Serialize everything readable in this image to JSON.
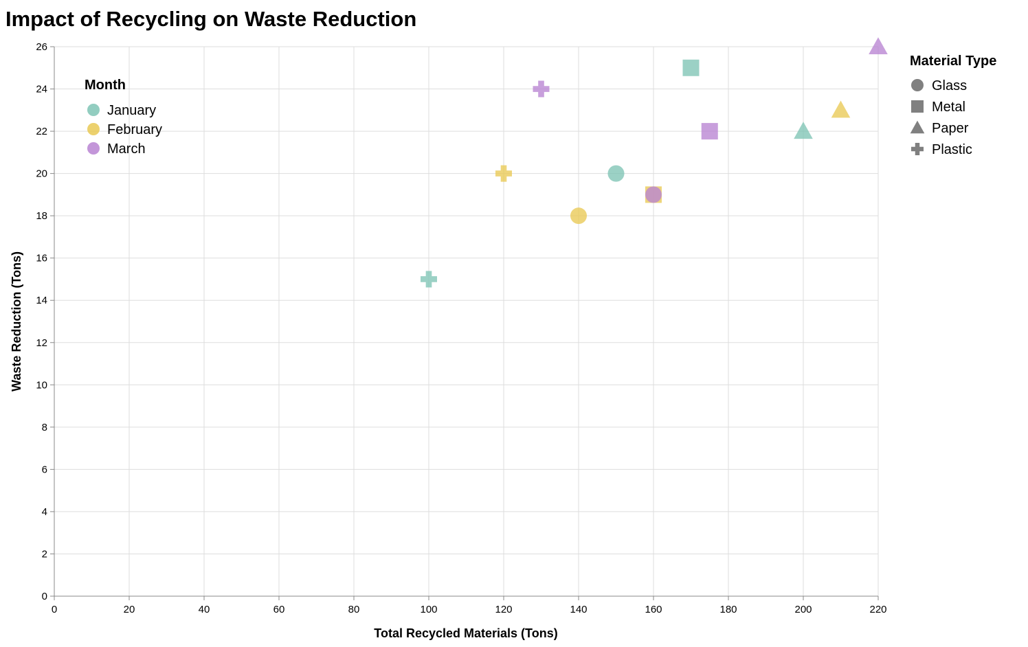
{
  "chart_data": {
    "type": "scatter",
    "title": "Impact of Recycling on Waste Reduction",
    "xlabel": "Total Recycled Materials (Tons)",
    "ylabel": "Waste Reduction (Tons)",
    "xlim": [
      0,
      220
    ],
    "ylim": [
      0,
      26
    ],
    "x_ticks": [
      "0",
      "20",
      "40",
      "60",
      "80",
      "100",
      "120",
      "140",
      "160",
      "180",
      "200",
      "220"
    ],
    "y_ticks": [
      "0",
      "2",
      "4",
      "6",
      "8",
      "10",
      "12",
      "14",
      "16",
      "18",
      "20",
      "22",
      "24",
      "26"
    ],
    "grid": true,
    "color_legend": {
      "title": "Month",
      "placement": "top-left inside",
      "entries": [
        {
          "label": "January",
          "color": "#7fc4b5"
        },
        {
          "label": "February",
          "color": "#e9c955"
        },
        {
          "label": "March",
          "color": "#b884d2"
        }
      ]
    },
    "shape_legend": {
      "title": "Material Type",
      "placement": "right",
      "entries": [
        {
          "label": "Glass",
          "shape": "circle"
        },
        {
          "label": "Metal",
          "shape": "square"
        },
        {
          "label": "Paper",
          "shape": "triangle"
        },
        {
          "label": "Plastic",
          "shape": "cross"
        }
      ]
    },
    "points": [
      {
        "month": "January",
        "material": "Plastic",
        "x": 100,
        "y": 15
      },
      {
        "month": "January",
        "material": "Glass",
        "x": 150,
        "y": 20
      },
      {
        "month": "January",
        "material": "Metal",
        "x": 170,
        "y": 25
      },
      {
        "month": "January",
        "material": "Paper",
        "x": 200,
        "y": 22
      },
      {
        "month": "February",
        "material": "Plastic",
        "x": 120,
        "y": 20
      },
      {
        "month": "February",
        "material": "Glass",
        "x": 140,
        "y": 18
      },
      {
        "month": "February",
        "material": "Metal",
        "x": 160,
        "y": 19
      },
      {
        "month": "February",
        "material": "Paper",
        "x": 210,
        "y": 23
      },
      {
        "month": "March",
        "material": "Plastic",
        "x": 130,
        "y": 24
      },
      {
        "month": "March",
        "material": "Glass",
        "x": 160,
        "y": 19
      },
      {
        "month": "March",
        "material": "Metal",
        "x": 175,
        "y": 22
      },
      {
        "month": "March",
        "material": "Paper",
        "x": 220,
        "y": 26
      }
    ]
  }
}
